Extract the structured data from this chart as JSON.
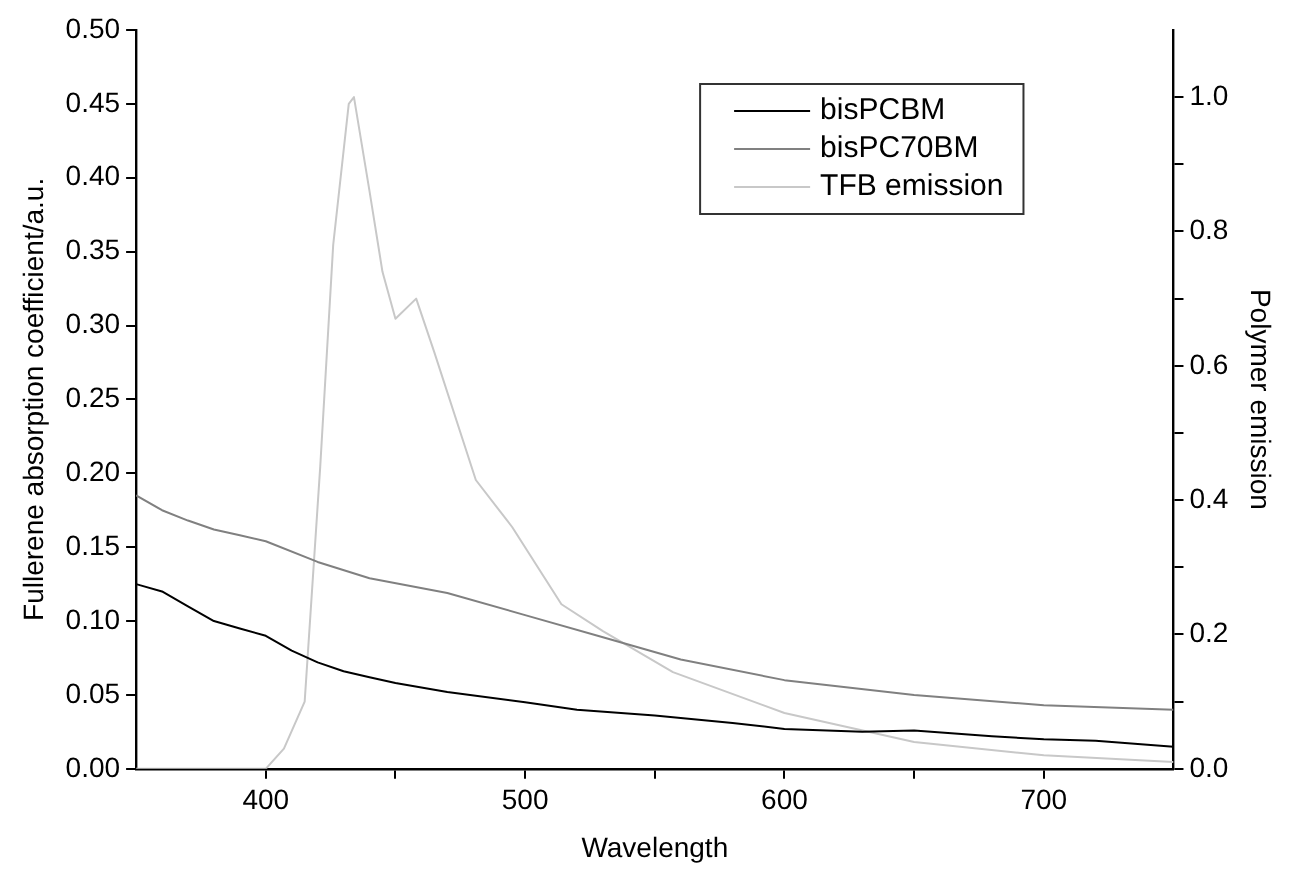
{
  "chart_data": {
    "type": "line",
    "xlabel": "Wavelength",
    "ylabel": "Fullerene absorption coefficient/a.u.",
    "y2label": "Polymer emission",
    "xlim": [
      350,
      750
    ],
    "xticks": [
      400,
      {
        "value": 450,
        "label": null
      },
      500,
      {
        "value": 550,
        "label": null
      },
      600,
      {
        "value": 650,
        "label": null
      },
      700
    ],
    "ylim": [
      0,
      0.5
    ],
    "yticks": [
      {
        "value": 0,
        "label": "0.00"
      },
      {
        "value": 0.05,
        "label": "0.05"
      },
      {
        "value": 0.1,
        "label": "0.10"
      },
      {
        "value": 0.15,
        "label": "0.15"
      },
      {
        "value": 0.2,
        "label": "0.20"
      },
      {
        "value": 0.25,
        "label": "0.25"
      },
      {
        "value": 0.3,
        "label": "0.30"
      },
      {
        "value": 0.35,
        "label": "0.35"
      },
      {
        "value": 0.4,
        "label": "0.40"
      },
      {
        "value": 0.45,
        "label": "0.45"
      },
      {
        "value": 0.5,
        "label": "0.50"
      }
    ],
    "y2lim": [
      0,
      1.1
    ],
    "y2ticks": [
      {
        "value": 0,
        "label": "0.0"
      },
      {
        "value": 0.1,
        "label": null
      },
      {
        "value": 0.2,
        "label": "0.2"
      },
      {
        "value": 0.3,
        "label": null
      },
      {
        "value": 0.4,
        "label": "0.4"
      },
      {
        "value": 0.5,
        "label": null
      },
      {
        "value": 0.6,
        "label": "0.6"
      },
      {
        "value": 0.7,
        "label": null
      },
      {
        "value": 0.8,
        "label": "0.8"
      },
      {
        "value": 0.9,
        "label": null
      },
      {
        "value": 1.0,
        "label": "1.0"
      }
    ],
    "grid": false,
    "legend": "top right",
    "marker": "none",
    "line_style": "solid",
    "series": [
      {
        "name": "bisPCBM",
        "color": "#000000",
        "x": [
          350,
          360,
          370,
          380,
          390,
          400,
          410,
          420,
          430,
          440,
          450,
          470,
          500,
          520,
          550,
          580,
          600,
          630,
          650,
          680,
          700,
          720,
          750
        ],
        "values": [
          0.125,
          0.12,
          0.11,
          0.1,
          0.095,
          0.09,
          0.08,
          0.072,
          0.066,
          0.062,
          0.058,
          0.052,
          0.045,
          0.04,
          0.036,
          0.031,
          0.027,
          0.025,
          0.026,
          0.022,
          0.02,
          0.019,
          0.015
        ]
      },
      {
        "name": "bisPC70BM",
        "color": "#808080",
        "x": [
          350,
          360,
          370,
          380,
          390,
          400,
          420,
          440,
          470,
          500,
          530,
          560,
          600,
          650,
          700,
          750
        ],
        "values": [
          0.185,
          0.175,
          0.168,
          0.162,
          0.158,
          0.154,
          0.14,
          0.129,
          0.119,
          0.104,
          0.089,
          0.074,
          0.06,
          0.05,
          0.043,
          0.04
        ]
      },
      {
        "name": "TFB emission",
        "color": "#c8c8c8",
        "axis": "y2",
        "x": [
          350,
          400,
          407,
          415,
          421,
          426,
          432,
          434,
          440,
          445,
          450,
          458,
          465,
          481,
          495,
          514,
          530,
          557,
          600,
          650,
          700,
          750
        ],
        "values": [
          0,
          0,
          0.03,
          0.1,
          0.45,
          0.78,
          0.99,
          1.0,
          0.86,
          0.74,
          0.67,
          0.7,
          0.62,
          0.43,
          0.36,
          0.245,
          0.205,
          0.144,
          0.083,
          0.04,
          0.02,
          0.01
        ]
      }
    ]
  }
}
